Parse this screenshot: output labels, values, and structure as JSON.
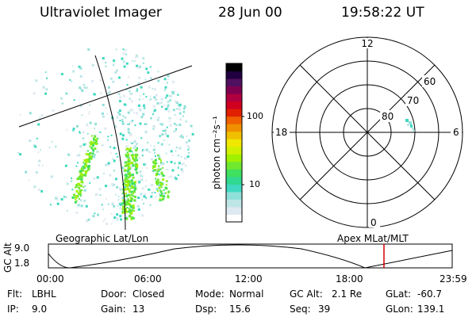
{
  "header": {
    "title": "Ultraviolet Imager",
    "date": "28 Jun 00",
    "time": "19:58:22 UT"
  },
  "colorbar": {
    "unit_label": "photon cm⁻²s⁻¹",
    "ticks": [
      "100",
      "10"
    ],
    "colors": [
      "#ffffff",
      "#dfe9f1",
      "#bfe6e6",
      "#8fe0d8",
      "#40d8c0",
      "#30d890",
      "#40e060",
      "#70e830",
      "#a0f000",
      "#d0f000",
      "#f0e800",
      "#f0c000",
      "#f09000",
      "#f06000",
      "#e02000",
      "#d00020",
      "#b00040",
      "#800050",
      "#501060",
      "#200040",
      "#000000"
    ]
  },
  "geo_label": "Geographic Lat/Lon",
  "apex_label": "Apex MLat/MLT",
  "polar": {
    "mlt_labels": [
      "12",
      "18",
      "6",
      "0"
    ],
    "lat_labels": [
      "60",
      "70",
      "80"
    ]
  },
  "timeline": {
    "y_axis_label": "GC Alt",
    "y_ticks": [
      "9.0",
      "1.8"
    ],
    "x_ticks": [
      "00:00",
      "06:00",
      "12:00",
      "18:00",
      "23:59"
    ],
    "current_time_color": "#d00000"
  },
  "status": {
    "flt_label": "Flt:",
    "flt_value": "LBHL",
    "ip_label": "IP:",
    "ip_value": "9.0",
    "door_label": "Door:",
    "door_value": "Closed",
    "gain_label": "Gain:",
    "gain_value": "13",
    "mode_label": "Mode:",
    "mode_value": "Normal",
    "dsp_label": "Dsp:",
    "dsp_value": "15.6",
    "gcalt_label": "GC Alt:",
    "gcalt_value": "2.1 Re",
    "seq_label": "Seq:",
    "seq_value": "39",
    "glat_label": "GLat:",
    "glat_value": "-60.7",
    "glon_label": "GLon:",
    "glon_value": "139.1"
  }
}
